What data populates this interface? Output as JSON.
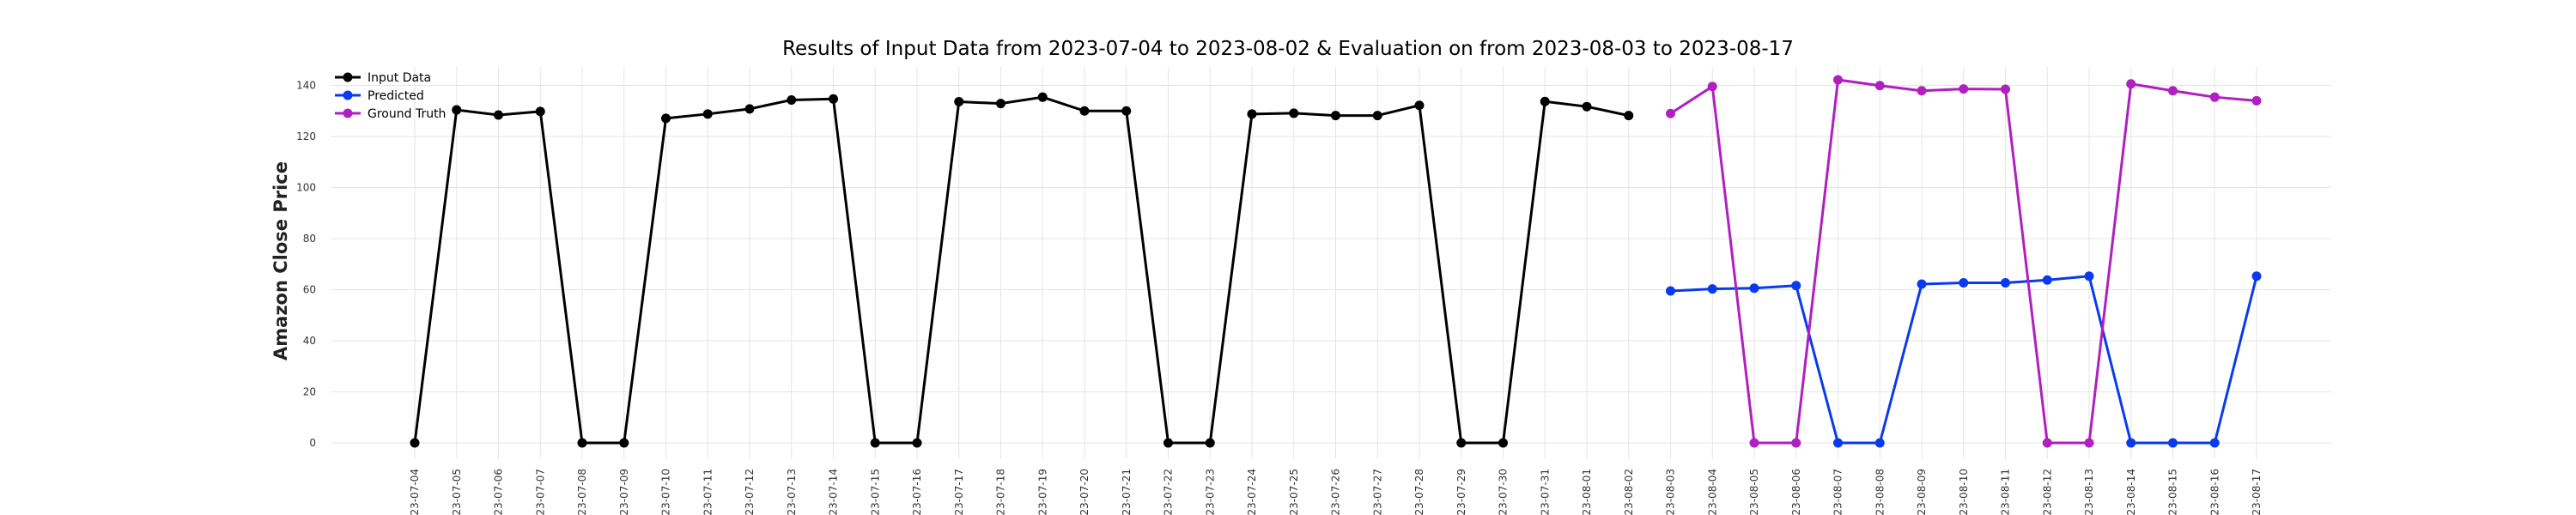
{
  "chart_data": {
    "type": "line",
    "title": "Results of Input Data from 2023-07-04 to 2023-08-02 & Evaluation on from 2023-08-03 to 2023-08-17",
    "xlabel": "",
    "ylabel": "Amazon Close Price",
    "ylim": [
      -5,
      150
    ],
    "yticks": [
      0,
      20,
      40,
      60,
      80,
      100,
      120,
      140
    ],
    "grid": true,
    "legend_placement": "top-left",
    "categories": [
      "2023-07-04",
      "2023-07-05",
      "2023-07-06",
      "2023-07-07",
      "2023-07-08",
      "2023-07-09",
      "2023-07-10",
      "2023-07-11",
      "2023-07-12",
      "2023-07-13",
      "2023-07-14",
      "2023-07-15",
      "2023-07-16",
      "2023-07-17",
      "2023-07-18",
      "2023-07-19",
      "2023-07-20",
      "2023-07-21",
      "2023-07-22",
      "2023-07-23",
      "2023-07-24",
      "2023-07-25",
      "2023-07-26",
      "2023-07-27",
      "2023-07-28",
      "2023-07-29",
      "2023-07-30",
      "2023-07-31",
      "2023-08-01",
      "2023-08-02",
      "2023-08-03",
      "2023-08-04",
      "2023-08-05",
      "2023-08-06",
      "2023-08-07",
      "2023-08-08",
      "2023-08-09",
      "2023-08-10",
      "2023-08-11",
      "2023-08-12",
      "2023-08-13",
      "2023-08-14",
      "2023-08-15",
      "2023-08-16",
      "2023-08-17"
    ],
    "xtick_labels": [
      "-23-07-04",
      "-23-07-05",
      "-23-07-06",
      "-23-07-07",
      "-23-07-08",
      "-23-07-09",
      "-23-07-10",
      "-23-07-11",
      "-23-07-12",
      "-23-07-13",
      "-23-07-14",
      "-23-07-15",
      "-23-07-16",
      "-23-07-17",
      "-23-07-18",
      "-23-07-19",
      "-23-07-20",
      "-23-07-21",
      "-23-07-22",
      "-23-07-23",
      "-23-07-24",
      "-23-07-25",
      "-23-07-26",
      "-23-07-27",
      "-23-07-28",
      "-23-07-29",
      "-23-07-30",
      "-23-07-31",
      "-23-08-01",
      "-23-08-02",
      "-23-08-03",
      "-23-08-04",
      "-23-08-05",
      "-23-08-06",
      "-23-08-07",
      "-23-08-08",
      "-23-08-09",
      "-23-08-10",
      "-23-08-11",
      "-23-08-12",
      "-23-08-13",
      "-23-08-14",
      "-23-08-15",
      "-23-08-16",
      "-23-08-17"
    ],
    "series": [
      {
        "name": "Input Data",
        "color": "#000000",
        "x": [
          "2023-07-04",
          "2023-07-05",
          "2023-07-06",
          "2023-07-07",
          "2023-07-08",
          "2023-07-09",
          "2023-07-10",
          "2023-07-11",
          "2023-07-12",
          "2023-07-13",
          "2023-07-14",
          "2023-07-15",
          "2023-07-16",
          "2023-07-17",
          "2023-07-18",
          "2023-07-19",
          "2023-07-20",
          "2023-07-21",
          "2023-07-22",
          "2023-07-23",
          "2023-07-24",
          "2023-07-25",
          "2023-07-26",
          "2023-07-27",
          "2023-07-28",
          "2023-07-29",
          "2023-07-30",
          "2023-07-31",
          "2023-08-01",
          "2023-08-02"
        ],
        "values": [
          0,
          130.4,
          128.4,
          129.8,
          0,
          0,
          127.1,
          128.8,
          130.8,
          134.3,
          134.7,
          0,
          0,
          133.6,
          132.9,
          135.4,
          130.0,
          130.0,
          0,
          0,
          128.8,
          129.1,
          128.2,
          128.2,
          132.2,
          0,
          0,
          133.7,
          131.7,
          128.2
        ]
      },
      {
        "name": "Predicted",
        "color": "#0a3aee",
        "x": [
          "2023-08-03",
          "2023-08-04",
          "2023-08-05",
          "2023-08-06",
          "2023-08-07",
          "2023-08-08",
          "2023-08-09",
          "2023-08-10",
          "2023-08-11",
          "2023-08-12",
          "2023-08-13",
          "2023-08-14",
          "2023-08-15",
          "2023-08-16",
          "2023-08-17"
        ],
        "values": [
          59.5,
          60.3,
          60.6,
          61.6,
          0,
          0,
          62.2,
          62.7,
          62.7,
          63.8,
          65.3,
          0,
          0,
          0,
          65.3
        ]
      },
      {
        "name": "Ground Truth",
        "color": "#b01fbf",
        "x": [
          "2023-08-03",
          "2023-08-04",
          "2023-08-05",
          "2023-08-06",
          "2023-08-07",
          "2023-08-08",
          "2023-08-09",
          "2023-08-10",
          "2023-08-11",
          "2023-08-12",
          "2023-08-13",
          "2023-08-14",
          "2023-08-15",
          "2023-08-16",
          "2023-08-17"
        ],
        "values": [
          129.0,
          139.6,
          0,
          0,
          142.2,
          139.9,
          137.9,
          138.6,
          138.5,
          0,
          0,
          140.6,
          137.9,
          135.4,
          134.0
        ]
      }
    ]
  }
}
